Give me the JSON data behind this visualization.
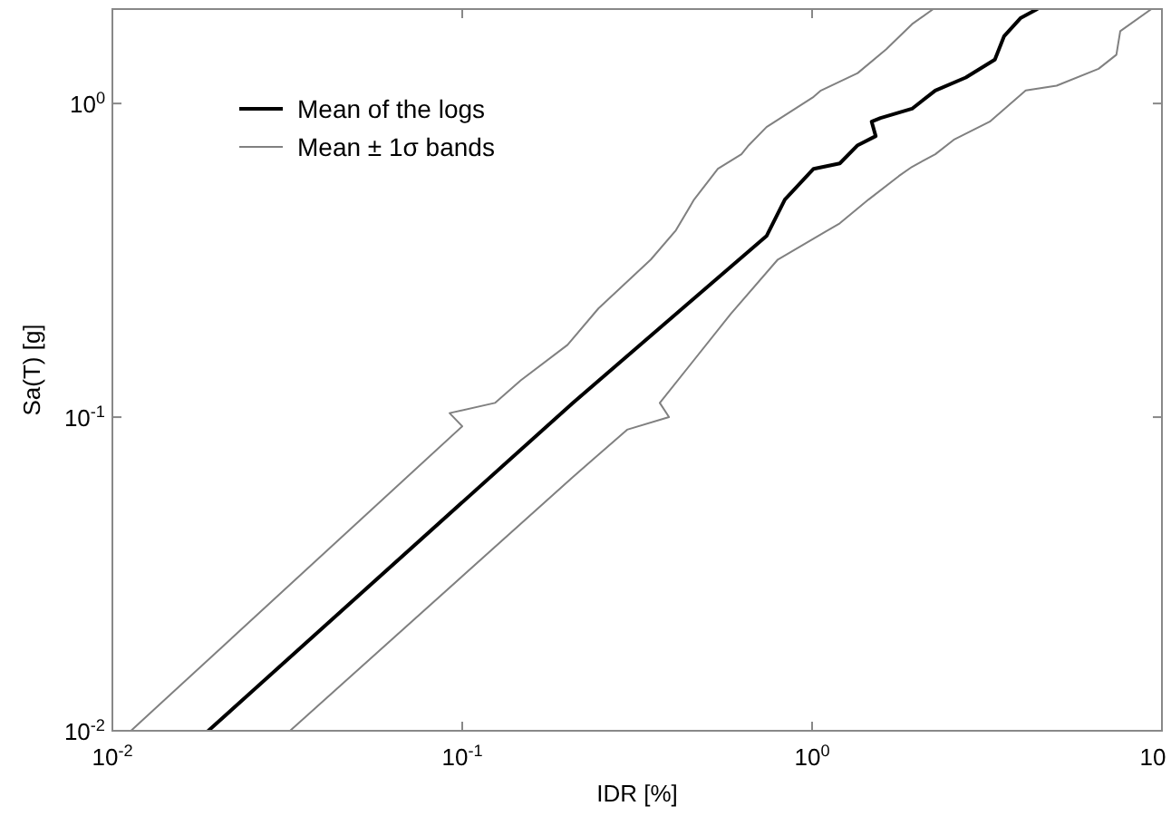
{
  "chart_data": {
    "type": "line",
    "xlabel": "IDR [%]",
    "ylabel": "Sa(T) [g]",
    "log": "xy",
    "grid": false,
    "legend": "top left",
    "line_style": "solid",
    "marker": "none",
    "xlim": [
      0.01,
      10
    ],
    "ylim": [
      0.01,
      2
    ],
    "xticks": [
      {
        "value": 0.01,
        "label": "10$^{-2}$"
      },
      {
        "value": 0.1,
        "label": "10$^{-1}$"
      },
      {
        "value": 1,
        "label": "10$^{0}$"
      },
      10
    ],
    "yticks": [
      {
        "value": 0.01,
        "label": "10$^{-2}$"
      },
      {
        "value": 0.1,
        "label": "10$^{-1}$"
      },
      {
        "value": 1,
        "label": "10$^{0}$"
      }
    ],
    "series": [
      {
        "name": "Mean of the logs",
        "color": "#000000",
        "x": [
          0.0188,
          0.207,
          0.741,
          0.836,
          1.01,
          1.2,
          1.35,
          1.52,
          1.48,
          1.57,
          1.93,
          2.25,
          2.75,
          3.33,
          3.54,
          3.94,
          4.4
        ],
        "values": [
          0.01,
          0.111,
          0.378,
          0.494,
          0.619,
          0.644,
          0.736,
          0.787,
          0.875,
          0.899,
          0.962,
          1.1,
          1.21,
          1.38,
          1.64,
          1.87,
          2
        ]
      },
      {
        "name": "Mean ± 1σ bands",
        "color": "#808080",
        "x": [
          0.0113,
          0.1,
          0.092,
          0.124,
          0.147,
          0.2,
          0.245,
          0.346,
          0.408,
          0.46,
          0.538,
          0.628,
          0.659,
          0.741,
          1.01,
          1.06,
          1.35,
          1.63,
          1.93,
          2.22
        ],
        "values": [
          0.01,
          0.0935,
          0.103,
          0.111,
          0.131,
          0.17,
          0.222,
          0.318,
          0.394,
          0.494,
          0.619,
          0.689,
          0.736,
          0.841,
          1.05,
          1.1,
          1.25,
          1.49,
          1.79,
          2
        ]
      },
      {
        "color": "#808080",
        "x": [
          0.0322,
          0.207,
          0.296,
          0.39,
          0.367,
          0.585,
          0.798,
          1.2,
          1.45,
          1.77,
          1.93,
          2.25,
          2.54,
          3.22,
          4.08,
          5.0,
          6.59,
          7.41,
          7.6,
          9.33
        ],
        "values": [
          0.01,
          0.0644,
          0.0912,
          0.1,
          0.111,
          0.213,
          0.318,
          0.415,
          0.494,
          0.587,
          0.628,
          0.689,
          0.766,
          0.875,
          1.1,
          1.14,
          1.29,
          1.43,
          1.7,
          2
        ]
      }
    ]
  }
}
